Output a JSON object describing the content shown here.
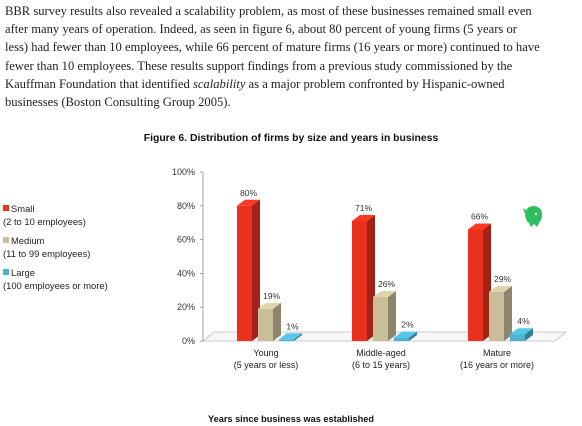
{
  "paragraph": {
    "line1": "BBR survey results also revealed a scalability problem, as most of these businesses remained small even",
    "line2": "after many years of operation.  Indeed, as seen in figure 6, about 80 percent of young firms (5 years or",
    "line3": "less) had fewer than 10 employees, while 66 percent of mature firms (16 years or more) continued to have",
    "line4": "fewer than 10 employees.  These results support findings from a previous study commissioned by the",
    "line5_pre": "Kauffman Foundation that identified ",
    "line5_em": "scalability",
    "line5_post": " as a major problem confronted by Hispanic-owned",
    "line6": "businesses (Boston Consulting Group 2005)."
  },
  "figure": {
    "title": "Figure 6.  Distribution of firms by size and years in business",
    "xlabel": "Years since business was established"
  },
  "legend": [
    {
      "line1": "Small",
      "line2": "(2 to 10 employees)",
      "color": "#e8321e"
    },
    {
      "line1": "Medium",
      "line2": "(11 to 99 employees)",
      "color": "#c9bd9a"
    },
    {
      "line1": "Large",
      "line2": "(100 employees or more)",
      "color": "#4bb3cf"
    }
  ],
  "chart_data": {
    "type": "bar",
    "title": "Figure 6.  Distribution of firms by size and years in business",
    "xlabel": "Years since business was established",
    "ylabel": "",
    "ylim": [
      0,
      100
    ],
    "y_ticks": [
      "0%",
      "20%",
      "40%",
      "60%",
      "80%",
      "100%"
    ],
    "grid": false,
    "legend_position": "left",
    "categories": [
      {
        "name": "Young",
        "sub": "(5 years or less)"
      },
      {
        "name": "Middle-aged",
        "sub": "(6 to 15 years)"
      },
      {
        "name": "Mature",
        "sub": "(16 years or more)"
      }
    ],
    "series": [
      {
        "name": "Small (2 to 10 employees)",
        "values": [
          80,
          71,
          66
        ],
        "labels": [
          "80%",
          "71%",
          "66%"
        ]
      },
      {
        "name": "Medium (11 to 99 employees)",
        "values": [
          19,
          26,
          29
        ],
        "labels": [
          "19%",
          "26%",
          "29%"
        ]
      },
      {
        "name": "Large (100 employees or more)",
        "values": [
          1,
          2,
          4
        ],
        "labels": [
          "1%",
          "2%",
          "4%"
        ]
      }
    ]
  },
  "icons": {
    "evernote": "evernote-elephant-icon"
  },
  "colors": {
    "small": "#e8321e",
    "medium": "#c9bd9a",
    "large": "#4bb3cf",
    "evernote": "#2dbe60"
  }
}
